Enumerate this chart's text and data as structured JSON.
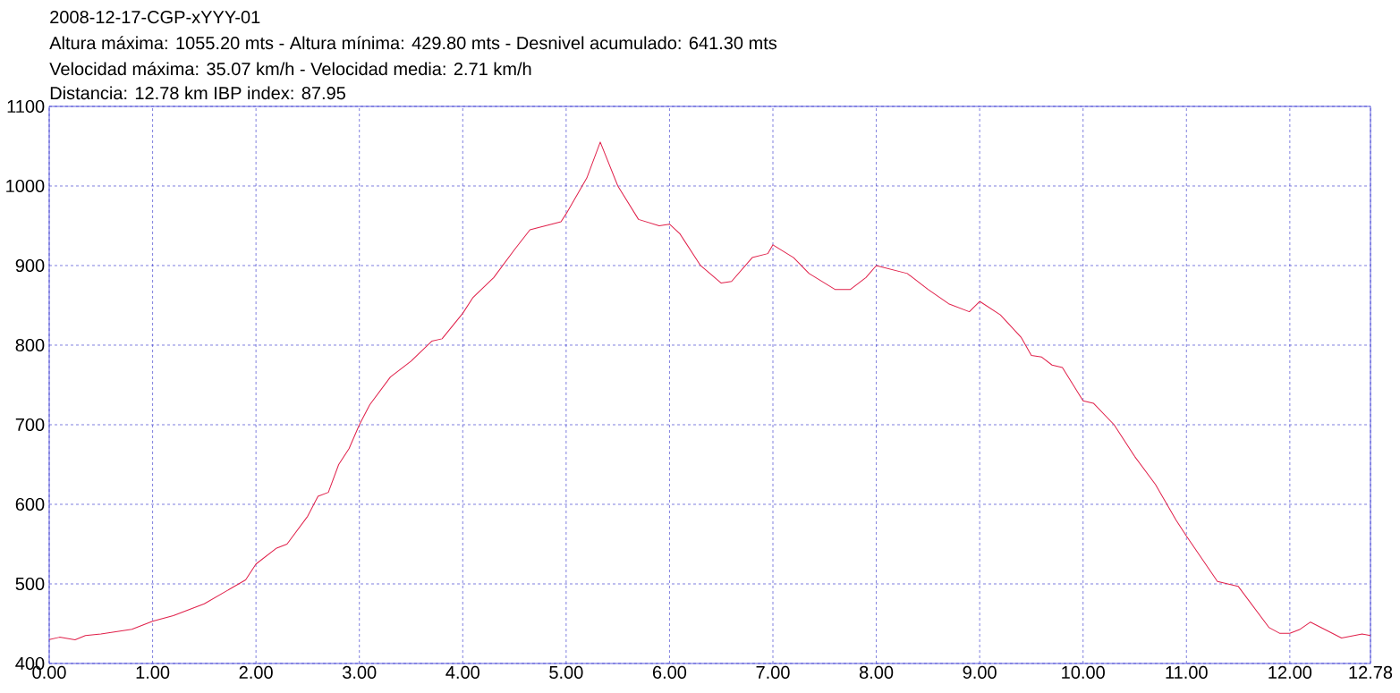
{
  "chart_data": {
    "type": "line",
    "title": "2008-12-17-CGP-xYYY-01",
    "subtitle": "Altura máxima: 1055.20 mts - Altura mínima: 429.80 mts - Desnivel acumulado: 641.30 mts",
    "annotations": [
      "Velocidad máxima: 35.07 km/h - Velocidad media: 2.71 km/h",
      "Distancia: 12.78 km IBP index: 87.95"
    ],
    "x": [
      0,
      0.1,
      0.25,
      0.35,
      0.5,
      0.8,
      1.0,
      1.2,
      1.5,
      1.7,
      1.9,
      2.0,
      2.2,
      2.3,
      2.5,
      2.6,
      2.7,
      2.8,
      2.9,
      3.0,
      3.1,
      3.3,
      3.5,
      3.7,
      3.8,
      4.0,
      4.1,
      4.3,
      4.5,
      4.65,
      4.8,
      4.95,
      5.0,
      5.2,
      5.33,
      5.5,
      5.7,
      5.9,
      6.0,
      6.1,
      6.3,
      6.5,
      6.6,
      6.8,
      6.95,
      7.0,
      7.2,
      7.35,
      7.6,
      7.75,
      7.9,
      8.0,
      8.3,
      8.5,
      8.7,
      8.9,
      9.0,
      9.2,
      9.4,
      9.5,
      9.6,
      9.7,
      9.8,
      10.0,
      10.1,
      10.3,
      10.5,
      10.7,
      10.9,
      11.0,
      11.3,
      11.5,
      11.8,
      11.9,
      12.0,
      12.1,
      12.2,
      12.5,
      12.7,
      12.78
    ],
    "series": [
      {
        "color": "#e0204a",
        "values": [
          430,
          433,
          429.8,
          435,
          437,
          443,
          453,
          460,
          475,
          490,
          505,
          525,
          545,
          550,
          585,
          610,
          615,
          650,
          670,
          700,
          725,
          760,
          780,
          805,
          808,
          840,
          860,
          885,
          920,
          945,
          950,
          955,
          965,
          1010,
          1055.2,
          1000,
          958,
          950,
          952,
          940,
          900,
          878,
          880,
          910,
          915,
          926,
          910,
          890,
          870,
          870,
          885,
          900,
          890,
          870,
          852,
          842,
          855,
          838,
          810,
          787,
          785,
          775,
          772,
          730,
          727,
          700,
          660,
          625,
          580,
          560,
          503,
          497,
          445,
          438,
          438,
          443,
          452,
          432,
          437,
          435
        ]
      }
    ],
    "xlim": [
      0,
      12.78
    ],
    "xticks": [
      {
        "value": 0,
        "label": "0.00"
      },
      {
        "value": 1,
        "label": "1.00"
      },
      {
        "value": 2,
        "label": "2.00"
      },
      {
        "value": 3,
        "label": "3.00"
      },
      {
        "value": 4,
        "label": "4.00"
      },
      {
        "value": 5,
        "label": "5.00"
      },
      {
        "value": 6,
        "label": "6.00"
      },
      {
        "value": 7,
        "label": "7.00"
      },
      {
        "value": 8,
        "label": "8.00"
      },
      {
        "value": 9,
        "label": "9.00"
      },
      {
        "value": 10,
        "label": "10.00"
      },
      {
        "value": 11,
        "label": "11.00"
      },
      {
        "value": 12,
        "label": "12.00"
      },
      {
        "value": 12.78,
        "label": "12.78"
      }
    ],
    "ylim": [
      400,
      1100
    ],
    "yticks": [
      400,
      500,
      600,
      700,
      800,
      900,
      1000,
      1100
    ],
    "grid": true,
    "line_style": "solid"
  }
}
